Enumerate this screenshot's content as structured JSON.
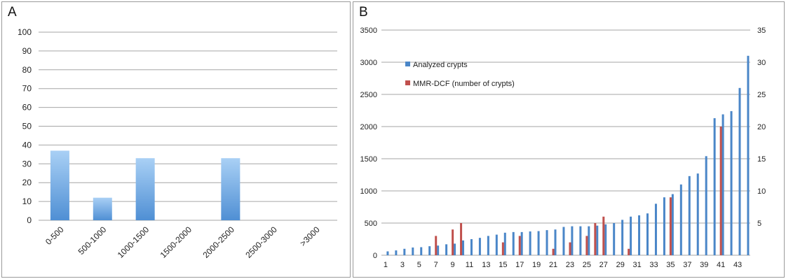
{
  "panels": {
    "a": {
      "letter": "A"
    },
    "b": {
      "letter": "B"
    }
  },
  "colors": {
    "bar_light": "#a9d0f5",
    "bar_dark": "#4f8fd4",
    "analyzed": "#4a86c8",
    "mmr": "#c0504d",
    "grid": "#a6a6a6"
  },
  "chart_data": [
    {
      "type": "bar",
      "categories": [
        "0-500",
        "500-1000",
        "1000-1500",
        "1500-2000",
        "2000-2500",
        "2500-3000",
        ">3000"
      ],
      "values": [
        37,
        12,
        33,
        0,
        33,
        0,
        0
      ],
      "ylim": [
        0,
        100
      ],
      "yticks": [
        0,
        10,
        20,
        30,
        40,
        50,
        60,
        70,
        80,
        90,
        100
      ],
      "grid": true,
      "legend": "none"
    },
    {
      "type": "bar",
      "x": [
        1,
        2,
        3,
        4,
        5,
        6,
        7,
        8,
        9,
        10,
        11,
        12,
        13,
        14,
        15,
        16,
        17,
        18,
        19,
        20,
        21,
        22,
        23,
        24,
        25,
        26,
        27,
        28,
        29,
        30,
        31,
        32,
        33,
        34,
        35,
        36,
        37,
        38,
        39,
        40,
        41,
        42,
        43,
        44
      ],
      "xticks": [
        1,
        3,
        5,
        7,
        9,
        11,
        13,
        15,
        17,
        19,
        21,
        23,
        25,
        27,
        29,
        31,
        33,
        35,
        37,
        39,
        41,
        43
      ],
      "series": [
        {
          "name": "Analyzed crypts",
          "axis": "left",
          "values": [
            60,
            75,
            100,
            120,
            125,
            140,
            150,
            170,
            180,
            230,
            250,
            270,
            300,
            320,
            350,
            360,
            360,
            370,
            375,
            390,
            400,
            440,
            450,
            450,
            450,
            460,
            480,
            500,
            550,
            600,
            620,
            650,
            800,
            900,
            950,
            1100,
            1230,
            1270,
            1540,
            2130,
            2190,
            2240,
            2600,
            3100
          ]
        },
        {
          "name": "MMR-DCF (number of crypts)",
          "axis": "right",
          "values": [
            0,
            0,
            0,
            0,
            0,
            0,
            3,
            0,
            4,
            5,
            0,
            0,
            0,
            0,
            2,
            0,
            3,
            0,
            0,
            0,
            1,
            0,
            2,
            0,
            3,
            5,
            6,
            0,
            0,
            1,
            0,
            0,
            0,
            0,
            9,
            0,
            0,
            0,
            0,
            0,
            20,
            0,
            0,
            0
          ]
        }
      ],
      "ylim": [
        0,
        3500
      ],
      "yticks": [
        0,
        500,
        1000,
        1500,
        2000,
        2500,
        3000,
        3500
      ],
      "y2lim": [
        0,
        35
      ],
      "y2ticks": [
        5,
        10,
        15,
        20,
        25,
        30,
        35
      ],
      "grid": true,
      "legend": "top-left"
    }
  ]
}
